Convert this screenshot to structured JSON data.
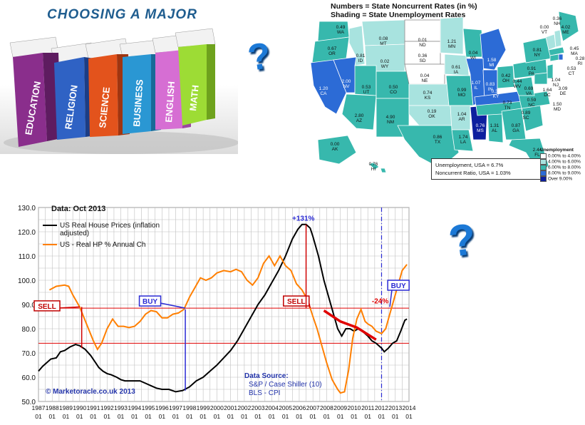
{
  "books": {
    "title": "CHOOSING A MAJOR",
    "spines": [
      "EDUCATION",
      "RELIGION",
      "SCIENCE",
      "BUSINESS",
      "ENGLISH",
      "MATH"
    ]
  },
  "question_mark": "?",
  "map": {
    "title_line1": "Numbers = State Noncurrent Rates (in %)",
    "title_line2": "Shading  = State Unemployment Rates",
    "summary_line1": "Unemployment, USA = 6.7%",
    "summary_line2": "Noncurrent Ratio, USA =  1.03%",
    "legend_title": "Unemployment",
    "legend": [
      {
        "label": "0.00% to 4.00%",
        "color": "#ffffff"
      },
      {
        "label": "4.00% to 6.00%",
        "color": "#a8e3df"
      },
      {
        "label": "6.00% to 8.00%",
        "color": "#37b8ad"
      },
      {
        "label": "8.00% to 9.00%",
        "color": "#2c6bd6"
      },
      {
        "label": "Over 9.00%",
        "color": "#0d1f9e"
      }
    ],
    "states": [
      {
        "abbr": "WA",
        "value": "0.49"
      },
      {
        "abbr": "OR",
        "value": "0.67"
      },
      {
        "abbr": "ID",
        "value": "0.81"
      },
      {
        "abbr": "MT",
        "value": "0.08"
      },
      {
        "abbr": "ND",
        "value": "0.01"
      },
      {
        "abbr": "MN",
        "value": "1.21"
      },
      {
        "abbr": "SD",
        "value": "0.36"
      },
      {
        "abbr": "WY",
        "value": "0.02"
      },
      {
        "abbr": "NE",
        "value": "0.04"
      },
      {
        "abbr": "IA",
        "value": "0.61"
      },
      {
        "abbr": "WI",
        "value": "0.04"
      },
      {
        "abbr": "MI",
        "value": "1.58"
      },
      {
        "abbr": "NV",
        "value": "2.00"
      },
      {
        "abbr": "CA",
        "value": "1.20"
      },
      {
        "abbr": "UT",
        "value": "0.53"
      },
      {
        "abbr": "CO",
        "value": "0.50"
      },
      {
        "abbr": "KS",
        "value": "0.74"
      },
      {
        "abbr": "MO",
        "value": "0.99"
      },
      {
        "abbr": "IL",
        "value": "1.07"
      },
      {
        "abbr": "IN",
        "value": "0.83"
      },
      {
        "abbr": "OH",
        "value": "0.42"
      },
      {
        "abbr": "KY",
        "value": "0.37"
      },
      {
        "abbr": "WV",
        "value": "0.44"
      },
      {
        "abbr": "VA",
        "value": "0.69"
      },
      {
        "abbr": "PA",
        "value": "0.91"
      },
      {
        "abbr": "NY",
        "value": "0.81"
      },
      {
        "abbr": "VT",
        "value": "0.00"
      },
      {
        "abbr": "NH",
        "value": "0.36"
      },
      {
        "abbr": "ME",
        "value": "4.02"
      },
      {
        "abbr": "MA",
        "value": "0.45"
      },
      {
        "abbr": "RI",
        "value": "0.28"
      },
      {
        "abbr": "CT",
        "value": "0.53"
      },
      {
        "abbr": "NJ",
        "value": "1.04"
      },
      {
        "abbr": "DE",
        "value": "3.09"
      },
      {
        "abbr": "MD",
        "value": "1.50"
      },
      {
        "abbr": "DC",
        "value": "1.64"
      },
      {
        "abbr": "AZ",
        "value": "2.80"
      },
      {
        "abbr": "NM",
        "value": "4.90"
      },
      {
        "abbr": "OK",
        "value": "0.19"
      },
      {
        "abbr": "TX",
        "value": "0.86"
      },
      {
        "abbr": "AR",
        "value": "1.04"
      },
      {
        "abbr": "LA",
        "value": "1.74"
      },
      {
        "abbr": "MS",
        "value": "0.76"
      },
      {
        "abbr": "AL",
        "value": "1.31"
      },
      {
        "abbr": "TN",
        "value": "0.73"
      },
      {
        "abbr": "GA",
        "value": "0.87"
      },
      {
        "abbr": "NC",
        "value": "0.59"
      },
      {
        "abbr": "SC",
        "value": "0.89"
      },
      {
        "abbr": "FL",
        "value": "2.44"
      },
      {
        "abbr": "AK",
        "value": "0.00"
      },
      {
        "abbr": "HI",
        "value": "0.76"
      }
    ]
  },
  "chart_data": {
    "type": "line",
    "title": "Data: Oct 2013",
    "ylim": [
      50,
      130
    ],
    "yticks": [
      "130.0",
      "120.0",
      "110.0",
      "100.0",
      "90.0",
      "80.0",
      "70.0",
      "60.0",
      "50.0"
    ],
    "xticks": [
      "1987",
      "1988",
      "1989",
      "1990",
      "1991",
      "1992",
      "1993",
      "1994",
      "1995",
      "1996",
      "1997",
      "1998",
      "1999",
      "2000",
      "2001",
      "2002",
      "2003",
      "2004",
      "2005",
      "2006",
      "2007",
      "2008",
      "2009",
      "2010",
      "2011",
      "2012",
      "2013",
      "2014"
    ],
    "xtick_sub": "01",
    "x_range": [
      1987.0,
      2014.0
    ],
    "grid": true,
    "legend": [
      {
        "name": "US Real House Prices (inflation adjusted)",
        "color": "#000000"
      },
      {
        "name": "US - Real HP % Annual Ch",
        "color": "#ff7f00"
      }
    ],
    "series": [
      {
        "name": "US Real House Prices (inflation adjusted)",
        "color": "#000000",
        "points": [
          [
            1987.0,
            62.5
          ],
          [
            1987.3,
            64.5
          ],
          [
            1987.6,
            66
          ],
          [
            1987.9,
            67.5
          ],
          [
            1988.3,
            68
          ],
          [
            1988.6,
            70.5
          ],
          [
            1988.9,
            71
          ],
          [
            1989.3,
            72.5
          ],
          [
            1989.7,
            73.5
          ],
          [
            1990.0,
            73
          ],
          [
            1990.4,
            71.5
          ],
          [
            1990.8,
            69
          ],
          [
            1991.1,
            66.5
          ],
          [
            1991.4,
            64
          ],
          [
            1991.7,
            62.5
          ],
          [
            1992.0,
            61.5
          ],
          [
            1992.3,
            61
          ],
          [
            1992.7,
            60
          ],
          [
            1993.0,
            59
          ],
          [
            1993.3,
            58.5
          ],
          [
            1993.7,
            58.5
          ],
          [
            1994.0,
            58.5
          ],
          [
            1994.4,
            58.5
          ],
          [
            1994.8,
            57.5
          ],
          [
            1995.2,
            56.5
          ],
          [
            1995.6,
            55.5
          ],
          [
            1996.0,
            55
          ],
          [
            1996.5,
            55
          ],
          [
            1997.0,
            54
          ],
          [
            1997.5,
            54.5
          ],
          [
            1998.0,
            56
          ],
          [
            1998.5,
            58.5
          ],
          [
            1999.0,
            60
          ],
          [
            1999.5,
            62.5
          ],
          [
            2000.0,
            65
          ],
          [
            2000.5,
            68
          ],
          [
            2001.0,
            71
          ],
          [
            2001.5,
            75
          ],
          [
            2002.0,
            80
          ],
          [
            2002.5,
            85
          ],
          [
            2003.0,
            90
          ],
          [
            2003.5,
            94
          ],
          [
            2004.0,
            99
          ],
          [
            2004.5,
            104
          ],
          [
            2005.0,
            110
          ],
          [
            2005.5,
            117
          ],
          [
            2005.9,
            121
          ],
          [
            2006.2,
            123
          ],
          [
            2006.5,
            123
          ],
          [
            2006.8,
            121.5
          ],
          [
            2007.0,
            118
          ],
          [
            2007.4,
            110
          ],
          [
            2007.8,
            100
          ],
          [
            2008.2,
            92
          ],
          [
            2008.5,
            86
          ],
          [
            2008.8,
            80
          ],
          [
            2009.1,
            77
          ],
          [
            2009.4,
            80
          ],
          [
            2009.7,
            80
          ],
          [
            2010.0,
            79
          ],
          [
            2010.3,
            80
          ],
          [
            2010.6,
            79
          ],
          [
            2011.0,
            77
          ],
          [
            2011.3,
            75
          ],
          [
            2011.6,
            74
          ],
          [
            2012.0,
            72
          ],
          [
            2012.2,
            70.5
          ],
          [
            2012.5,
            72
          ],
          [
            2012.8,
            74
          ],
          [
            2013.1,
            75
          ],
          [
            2013.4,
            79
          ],
          [
            2013.7,
            83.5
          ],
          [
            2013.85,
            84
          ]
        ]
      },
      {
        "name": "US - Real HP % Annual Ch",
        "color": "#ff7f00",
        "points": [
          [
            1987.8,
            96
          ],
          [
            1988.3,
            97.5
          ],
          [
            1988.9,
            98
          ],
          [
            1989.2,
            97.5
          ],
          [
            1989.5,
            94
          ],
          [
            1990.0,
            89
          ],
          [
            1990.5,
            82
          ],
          [
            1991.0,
            75
          ],
          [
            1991.3,
            71.5
          ],
          [
            1991.6,
            74
          ],
          [
            1992.0,
            80
          ],
          [
            1992.4,
            84
          ],
          [
            1992.8,
            81
          ],
          [
            1993.2,
            81
          ],
          [
            1993.6,
            80.5
          ],
          [
            1994.0,
            81
          ],
          [
            1994.4,
            83
          ],
          [
            1994.8,
            86
          ],
          [
            1995.2,
            87.5
          ],
          [
            1995.6,
            87
          ],
          [
            1996.0,
            84.5
          ],
          [
            1996.4,
            84.5
          ],
          [
            1996.8,
            86
          ],
          [
            1997.2,
            86.5
          ],
          [
            1997.6,
            88
          ],
          [
            1998.0,
            93
          ],
          [
            1998.4,
            97
          ],
          [
            1998.8,
            101
          ],
          [
            1999.2,
            100
          ],
          [
            1999.6,
            101
          ],
          [
            2000.0,
            103
          ],
          [
            2000.5,
            104
          ],
          [
            2001.0,
            103.5
          ],
          [
            2001.4,
            104.5
          ],
          [
            2001.8,
            103.5
          ],
          [
            2002.2,
            100
          ],
          [
            2002.6,
            98
          ],
          [
            2003.0,
            101
          ],
          [
            2003.4,
            107
          ],
          [
            2003.8,
            110
          ],
          [
            2004.2,
            106
          ],
          [
            2004.6,
            110
          ],
          [
            2005.0,
            106
          ],
          [
            2005.4,
            104
          ],
          [
            2005.8,
            98.5
          ],
          [
            2006.2,
            96
          ],
          [
            2006.5,
            93
          ],
          [
            2006.8,
            88.5
          ],
          [
            2007.0,
            85
          ],
          [
            2007.3,
            80
          ],
          [
            2007.6,
            74
          ],
          [
            2008.0,
            66
          ],
          [
            2008.4,
            59
          ],
          [
            2008.8,
            55
          ],
          [
            2009.0,
            53.5
          ],
          [
            2009.3,
            54
          ],
          [
            2009.6,
            63
          ],
          [
            2009.9,
            76
          ],
          [
            2010.2,
            84
          ],
          [
            2010.5,
            88
          ],
          [
            2010.8,
            83
          ],
          [
            2011.0,
            82
          ],
          [
            2011.3,
            81
          ],
          [
            2011.6,
            79
          ],
          [
            2012.0,
            78
          ],
          [
            2012.3,
            80
          ],
          [
            2012.6,
            86
          ],
          [
            2012.9,
            92
          ],
          [
            2013.2,
            98
          ],
          [
            2013.5,
            104
          ],
          [
            2013.85,
            106.5
          ]
        ]
      }
    ],
    "annotations": [
      {
        "text": "SELL",
        "x": 1990.0,
        "y": 89.0
      },
      {
        "text": "BUY",
        "x": 1997.7,
        "y": 88.5
      },
      {
        "text": "SELL",
        "x": 2006.8,
        "y": 88.5
      },
      {
        "text": "BUY",
        "x": 2012.6,
        "y": 89.0
      },
      {
        "text": "+131%"
      },
      {
        "text": "-24%"
      }
    ],
    "reference_lines": {
      "horizontal": [
        88.5,
        74.0
      ],
      "vertical": [
        2012.0
      ]
    },
    "source_lines": [
      "Data Source:",
      "S&P / Case Shiller (10)",
      "BLS - CPI"
    ],
    "copyright": "© Marketoracle.co.uk 2013"
  }
}
